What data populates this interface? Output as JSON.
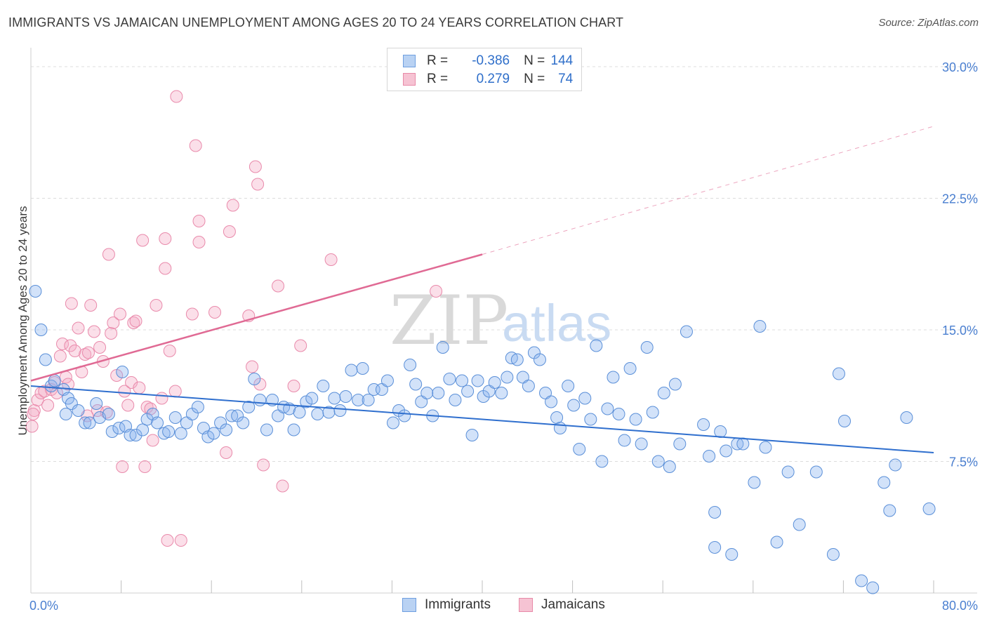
{
  "title": "IMMIGRANTS VS JAMAICAN UNEMPLOYMENT AMONG AGES 20 TO 24 YEARS CORRELATION CHART",
  "source": "Source: ZipAtlas.com",
  "watermark": {
    "zip": "ZIP",
    "atlas": "atlas"
  },
  "legend": {
    "rows": [
      {
        "r_label": "R =",
        "r_value": "-0.386",
        "n_label": "N =",
        "n_value": "144",
        "fill": "#b9d2f3",
        "stroke": "#6f9fe0"
      },
      {
        "r_label": "R =",
        "r_value": "0.279",
        "n_label": "N =",
        "n_value": "74",
        "fill": "#f6c3d3",
        "stroke": "#e88aa8"
      }
    ]
  },
  "bottom_legend": [
    {
      "label": "Immigrants",
      "fill": "#b9d2f3",
      "stroke": "#6f9fe0"
    },
    {
      "label": "Jamaicans",
      "fill": "#f6c3d3",
      "stroke": "#e88aa8"
    }
  ],
  "colors": {
    "blue_fill": "rgba(138,180,238,0.38)",
    "blue_stroke": "#5a8fd8",
    "blue_line": "#2f6fce",
    "pink_fill": "rgba(244,170,196,0.38)",
    "pink_stroke": "#e98aab",
    "pink_line": "#e06a94",
    "grid": "#dcdcdc",
    "tick": "#4a7fd0"
  },
  "chart_data": {
    "type": "scatter",
    "title": "IMMIGRANTS VS JAMAICAN UNEMPLOYMENT AMONG AGES 20 TO 24 YEARS CORRELATION CHART",
    "xlabel": "",
    "ylabel": "Unemployment Among Ages 20 to 24 years",
    "xlim": [
      0,
      80
    ],
    "ylim": [
      0,
      30
    ],
    "x_tick_labels": [
      "0.0%",
      "80.0%"
    ],
    "y_ticks": [
      7.5,
      15.0,
      22.5,
      30.0
    ],
    "y_tick_labels": [
      "7.5%",
      "15.0%",
      "22.5%",
      "30.0%"
    ],
    "grid": true,
    "series": [
      {
        "name": "Immigrants",
        "r": -0.386,
        "n": 144,
        "trend": {
          "x0": 0,
          "y0": 11.8,
          "x1": 80,
          "y1": 8.0
        },
        "points": [
          [
            0.4,
            17.2
          ],
          [
            0.9,
            15.0
          ],
          [
            1.3,
            13.3
          ],
          [
            1.8,
            11.8
          ],
          [
            2.1,
            12.1
          ],
          [
            2.9,
            11.6
          ],
          [
            3.3,
            11.1
          ],
          [
            3.6,
            10.8
          ],
          [
            4.2,
            10.4
          ],
          [
            4.8,
            9.7
          ],
          [
            5.2,
            9.7
          ],
          [
            5.8,
            10.8
          ],
          [
            6.1,
            10.0
          ],
          [
            6.9,
            10.2
          ],
          [
            7.2,
            9.2
          ],
          [
            7.8,
            9.4
          ],
          [
            8.4,
            9.5
          ],
          [
            8.8,
            9.0
          ],
          [
            9.3,
            9.0
          ],
          [
            9.9,
            9.3
          ],
          [
            10.3,
            9.9
          ],
          [
            10.8,
            10.2
          ],
          [
            11.2,
            9.7
          ],
          [
            11.8,
            9.1
          ],
          [
            12.2,
            9.2
          ],
          [
            12.8,
            10.0
          ],
          [
            13.3,
            9.1
          ],
          [
            13.8,
            9.7
          ],
          [
            14.3,
            10.2
          ],
          [
            14.8,
            10.6
          ],
          [
            15.3,
            9.4
          ],
          [
            15.7,
            8.9
          ],
          [
            16.2,
            9.1
          ],
          [
            16.8,
            9.7
          ],
          [
            17.3,
            9.3
          ],
          [
            17.8,
            10.1
          ],
          [
            18.3,
            10.1
          ],
          [
            18.8,
            9.7
          ],
          [
            19.3,
            10.6
          ],
          [
            19.8,
            12.2
          ],
          [
            20.3,
            11.0
          ],
          [
            20.9,
            9.3
          ],
          [
            21.4,
            11.0
          ],
          [
            21.9,
            10.1
          ],
          [
            22.4,
            10.6
          ],
          [
            22.9,
            10.5
          ],
          [
            23.3,
            9.3
          ],
          [
            23.8,
            10.3
          ],
          [
            24.4,
            10.9
          ],
          [
            24.9,
            11.1
          ],
          [
            25.4,
            10.2
          ],
          [
            25.9,
            11.8
          ],
          [
            26.4,
            10.3
          ],
          [
            26.9,
            11.1
          ],
          [
            27.4,
            10.4
          ],
          [
            27.9,
            11.2
          ],
          [
            28.4,
            12.7
          ],
          [
            29.0,
            11.0
          ],
          [
            29.4,
            12.8
          ],
          [
            29.9,
            11.0
          ],
          [
            30.4,
            11.6
          ],
          [
            31.1,
            11.6
          ],
          [
            31.6,
            12.1
          ],
          [
            32.1,
            9.7
          ],
          [
            32.6,
            10.4
          ],
          [
            33.1,
            10.1
          ],
          [
            33.6,
            13.0
          ],
          [
            34.1,
            11.9
          ],
          [
            34.6,
            10.9
          ],
          [
            35.1,
            11.4
          ],
          [
            35.6,
            10.1
          ],
          [
            36.1,
            11.4
          ],
          [
            36.5,
            14.0
          ],
          [
            37.1,
            12.2
          ],
          [
            37.6,
            11.0
          ],
          [
            38.2,
            12.1
          ],
          [
            38.7,
            11.5
          ],
          [
            39.1,
            9.0
          ],
          [
            39.6,
            12.1
          ],
          [
            40.1,
            11.2
          ],
          [
            40.6,
            11.5
          ],
          [
            41.1,
            12.0
          ],
          [
            41.7,
            11.4
          ],
          [
            42.2,
            12.3
          ],
          [
            42.6,
            13.4
          ],
          [
            43.1,
            13.3
          ],
          [
            43.6,
            12.3
          ],
          [
            44.1,
            11.8
          ],
          [
            44.6,
            13.7
          ],
          [
            45.1,
            13.3
          ],
          [
            45.6,
            11.4
          ],
          [
            46.1,
            10.9
          ],
          [
            46.6,
            10.0
          ],
          [
            46.9,
            9.4
          ],
          [
            47.6,
            11.8
          ],
          [
            48.1,
            10.7
          ],
          [
            48.6,
            8.2
          ],
          [
            49.1,
            11.1
          ],
          [
            49.6,
            9.9
          ],
          [
            50.1,
            14.1
          ],
          [
            50.6,
            7.5
          ],
          [
            51.1,
            10.5
          ],
          [
            51.6,
            12.3
          ],
          [
            52.1,
            10.2
          ],
          [
            52.6,
            8.7
          ],
          [
            53.1,
            12.8
          ],
          [
            53.6,
            9.9
          ],
          [
            54.1,
            8.5
          ],
          [
            54.6,
            14.0
          ],
          [
            55.1,
            10.3
          ],
          [
            55.6,
            7.5
          ],
          [
            56.1,
            11.4
          ],
          [
            56.6,
            7.2
          ],
          [
            57.1,
            11.9
          ],
          [
            57.5,
            8.5
          ],
          [
            58.1,
            14.9
          ],
          [
            59.6,
            9.6
          ],
          [
            60.1,
            7.8
          ],
          [
            60.6,
            4.6
          ],
          [
            60.6,
            2.6
          ],
          [
            61.1,
            9.2
          ],
          [
            61.6,
            8.1
          ],
          [
            62.1,
            2.2
          ],
          [
            62.6,
            8.5
          ],
          [
            63.1,
            8.5
          ],
          [
            64.1,
            6.3
          ],
          [
            64.6,
            15.2
          ],
          [
            65.1,
            8.3
          ],
          [
            66.1,
            2.9
          ],
          [
            67.1,
            6.9
          ],
          [
            68.1,
            3.9
          ],
          [
            69.6,
            6.9
          ],
          [
            71.1,
            2.2
          ],
          [
            71.6,
            12.5
          ],
          [
            72.1,
            9.8
          ],
          [
            73.6,
            0.7
          ],
          [
            74.6,
            0.3
          ],
          [
            75.6,
            6.3
          ],
          [
            76.1,
            4.7
          ],
          [
            76.6,
            7.3
          ],
          [
            77.6,
            10.0
          ],
          [
            79.6,
            4.8
          ],
          [
            3.1,
            10.2
          ],
          [
            8.1,
            12.6
          ]
        ]
      },
      {
        "name": "Jamaicans",
        "r": 0.279,
        "n": 74,
        "trend": {
          "x0": 0,
          "y0": 12.1,
          "x1": 40,
          "y1": 19.3,
          "dashed_x1": 80,
          "dashed_y1": 26.6
        },
        "points": [
          [
            0.1,
            9.5
          ],
          [
            0.3,
            10.4
          ],
          [
            0.6,
            11.0
          ],
          [
            0.9,
            11.4
          ],
          [
            1.2,
            11.5
          ],
          [
            1.5,
            10.7
          ],
          [
            1.8,
            11.6
          ],
          [
            2.1,
            12.0
          ],
          [
            2.6,
            13.5
          ],
          [
            2.8,
            14.2
          ],
          [
            3.1,
            12.3
          ],
          [
            3.3,
            11.9
          ],
          [
            3.5,
            14.1
          ],
          [
            3.6,
            16.5
          ],
          [
            3.9,
            13.8
          ],
          [
            4.2,
            15.1
          ],
          [
            4.5,
            12.6
          ],
          [
            4.8,
            13.6
          ],
          [
            5.1,
            13.7
          ],
          [
            5.3,
            16.4
          ],
          [
            5.6,
            14.9
          ],
          [
            5.9,
            10.4
          ],
          [
            6.1,
            14.0
          ],
          [
            6.4,
            13.2
          ],
          [
            6.7,
            10.3
          ],
          [
            6.9,
            19.3
          ],
          [
            7.1,
            14.8
          ],
          [
            7.3,
            15.4
          ],
          [
            7.6,
            12.4
          ],
          [
            7.9,
            15.9
          ],
          [
            8.1,
            7.2
          ],
          [
            8.3,
            11.5
          ],
          [
            8.6,
            10.7
          ],
          [
            8.9,
            12.0
          ],
          [
            9.1,
            15.4
          ],
          [
            9.3,
            15.5
          ],
          [
            9.6,
            11.7
          ],
          [
            9.9,
            20.1
          ],
          [
            10.1,
            7.2
          ],
          [
            10.3,
            10.6
          ],
          [
            10.6,
            10.5
          ],
          [
            10.8,
            8.7
          ],
          [
            11.1,
            16.4
          ],
          [
            11.6,
            11.1
          ],
          [
            11.9,
            20.2
          ],
          [
            11.9,
            18.5
          ],
          [
            12.1,
            3.0
          ],
          [
            12.3,
            13.8
          ],
          [
            12.8,
            11.5
          ],
          [
            12.9,
            28.3
          ],
          [
            13.3,
            3.0
          ],
          [
            14.3,
            15.9
          ],
          [
            14.6,
            25.5
          ],
          [
            14.9,
            20.0
          ],
          [
            14.9,
            21.2
          ],
          [
            16.3,
            16.0
          ],
          [
            17.3,
            8.0
          ],
          [
            17.6,
            20.6
          ],
          [
            17.9,
            22.1
          ],
          [
            19.3,
            15.8
          ],
          [
            19.6,
            12.9
          ],
          [
            19.9,
            24.3
          ],
          [
            20.1,
            23.3
          ],
          [
            20.3,
            11.9
          ],
          [
            20.6,
            7.3
          ],
          [
            21.9,
            17.5
          ],
          [
            22.3,
            6.1
          ],
          [
            23.3,
            11.8
          ],
          [
            23.9,
            14.1
          ],
          [
            26.6,
            19.0
          ],
          [
            35.9,
            17.2
          ],
          [
            5.0,
            10.1
          ],
          [
            2.3,
            11.4
          ],
          [
            0.2,
            10.2
          ]
        ]
      }
    ]
  }
}
